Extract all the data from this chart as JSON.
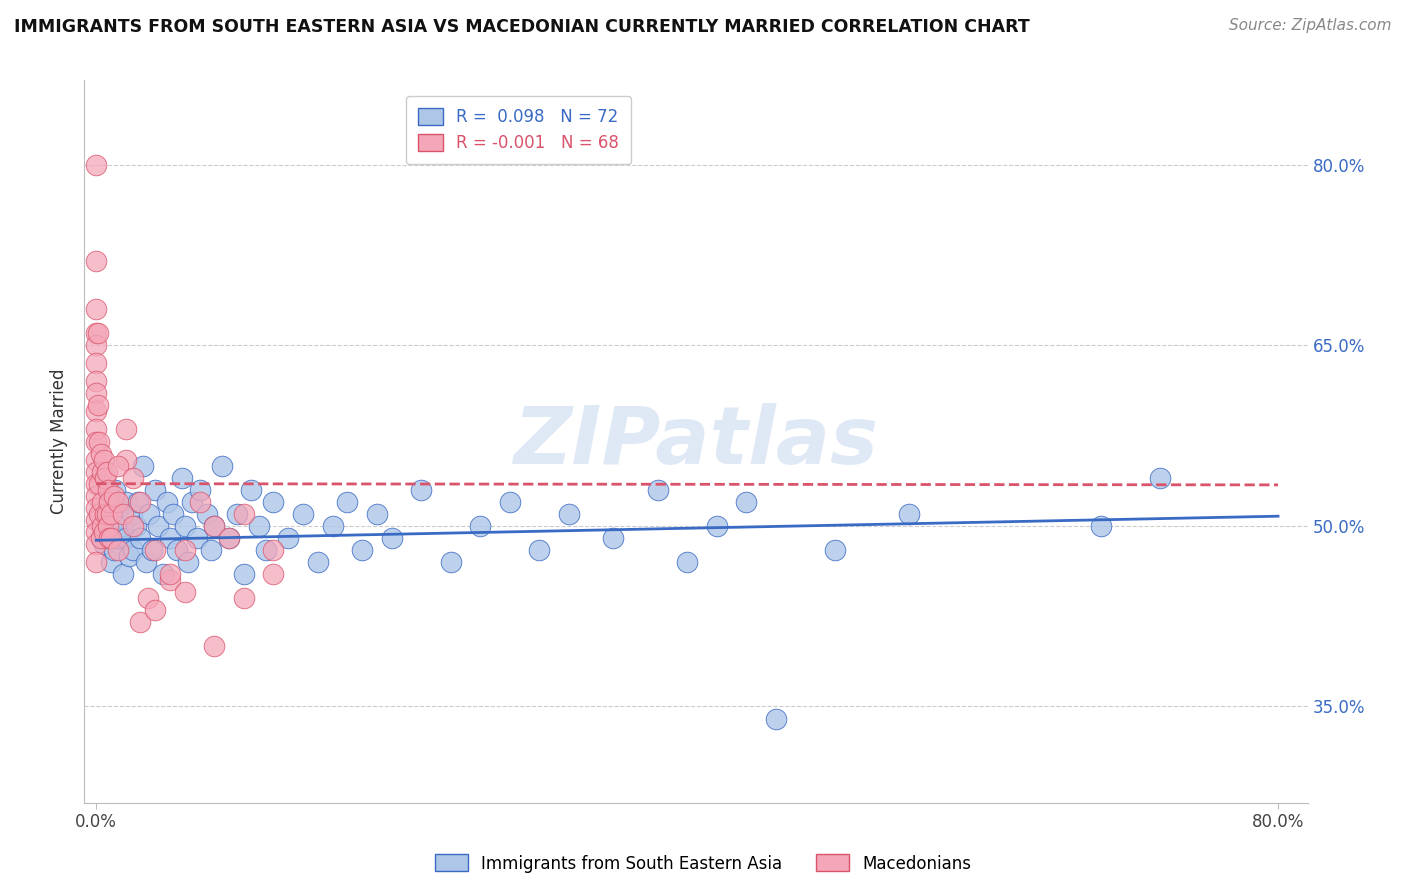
{
  "title": "IMMIGRANTS FROM SOUTH EASTERN ASIA VS MACEDONIAN CURRENTLY MARRIED CORRELATION CHART",
  "source": "Source: ZipAtlas.com",
  "ylabel": "Currently Married",
  "y_tick_labels": [
    "35.0%",
    "50.0%",
    "65.0%",
    "80.0%"
  ],
  "y_tick_values": [
    0.35,
    0.5,
    0.65,
    0.8
  ],
  "legend_r1": "R =  0.098",
  "legend_n1": "N = 72",
  "legend_r2": "R = -0.001",
  "legend_n2": "N = 68",
  "color_blue": "#aec6e8",
  "color_pink": "#f4a7b9",
  "color_line_blue": "#3a6bc4",
  "color_line_pink": "#d9536a",
  "watermark": "ZIPatlas",
  "blue_scatter_x": [
    0.003,
    0.005,
    0.007,
    0.008,
    0.01,
    0.01,
    0.012,
    0.013,
    0.015,
    0.015,
    0.018,
    0.018,
    0.02,
    0.02,
    0.022,
    0.024,
    0.025,
    0.027,
    0.028,
    0.03,
    0.032,
    0.034,
    0.036,
    0.038,
    0.04,
    0.042,
    0.045,
    0.048,
    0.05,
    0.052,
    0.055,
    0.058,
    0.06,
    0.062,
    0.065,
    0.068,
    0.07,
    0.075,
    0.078,
    0.08,
    0.085,
    0.09,
    0.095,
    0.1,
    0.105,
    0.11,
    0.115,
    0.12,
    0.13,
    0.14,
    0.15,
    0.16,
    0.17,
    0.18,
    0.19,
    0.2,
    0.22,
    0.24,
    0.26,
    0.28,
    0.3,
    0.32,
    0.35,
    0.38,
    0.4,
    0.42,
    0.44,
    0.46,
    0.5,
    0.55,
    0.68,
    0.72
  ],
  "blue_scatter_y": [
    0.49,
    0.485,
    0.51,
    0.52,
    0.47,
    0.5,
    0.48,
    0.53,
    0.49,
    0.515,
    0.5,
    0.46,
    0.52,
    0.49,
    0.475,
    0.51,
    0.48,
    0.5,
    0.52,
    0.49,
    0.55,
    0.47,
    0.51,
    0.48,
    0.53,
    0.5,
    0.46,
    0.52,
    0.49,
    0.51,
    0.48,
    0.54,
    0.5,
    0.47,
    0.52,
    0.49,
    0.53,
    0.51,
    0.48,
    0.5,
    0.55,
    0.49,
    0.51,
    0.46,
    0.53,
    0.5,
    0.48,
    0.52,
    0.49,
    0.51,
    0.47,
    0.5,
    0.52,
    0.48,
    0.51,
    0.49,
    0.53,
    0.47,
    0.5,
    0.52,
    0.48,
    0.51,
    0.49,
    0.53,
    0.47,
    0.5,
    0.52,
    0.34,
    0.48,
    0.51,
    0.5,
    0.54
  ],
  "pink_scatter_x": [
    0.0,
    0.0,
    0.0,
    0.0,
    0.0,
    0.0,
    0.0,
    0.0,
    0.0,
    0.0,
    0.0,
    0.0,
    0.0,
    0.0,
    0.0,
    0.0,
    0.0,
    0.0,
    0.0,
    0.0,
    0.001,
    0.001,
    0.002,
    0.002,
    0.002,
    0.003,
    0.003,
    0.004,
    0.004,
    0.004,
    0.005,
    0.005,
    0.006,
    0.006,
    0.007,
    0.007,
    0.008,
    0.008,
    0.009,
    0.009,
    0.01,
    0.01,
    0.012,
    0.015,
    0.015,
    0.018,
    0.02,
    0.025,
    0.03,
    0.035,
    0.04,
    0.05,
    0.06,
    0.07,
    0.08,
    0.09,
    0.1,
    0.12,
    0.015,
    0.02,
    0.025,
    0.03,
    0.04,
    0.05,
    0.06,
    0.08,
    0.1,
    0.12
  ],
  "pink_scatter_y": [
    0.8,
    0.72,
    0.68,
    0.66,
    0.65,
    0.635,
    0.62,
    0.61,
    0.595,
    0.58,
    0.57,
    0.555,
    0.545,
    0.535,
    0.525,
    0.515,
    0.505,
    0.495,
    0.485,
    0.47,
    0.66,
    0.6,
    0.57,
    0.535,
    0.51,
    0.56,
    0.49,
    0.545,
    0.52,
    0.5,
    0.555,
    0.495,
    0.54,
    0.51,
    0.545,
    0.51,
    0.53,
    0.5,
    0.52,
    0.49,
    0.51,
    0.49,
    0.525,
    0.52,
    0.48,
    0.51,
    0.555,
    0.5,
    0.42,
    0.44,
    0.43,
    0.455,
    0.48,
    0.52,
    0.5,
    0.49,
    0.51,
    0.48,
    0.55,
    0.58,
    0.54,
    0.52,
    0.48,
    0.46,
    0.445,
    0.4,
    0.44,
    0.46
  ],
  "blue_trend": [
    0.0,
    0.8,
    0.488,
    0.508
  ],
  "pink_trend": [
    0.0,
    0.8,
    0.535,
    0.534
  ]
}
